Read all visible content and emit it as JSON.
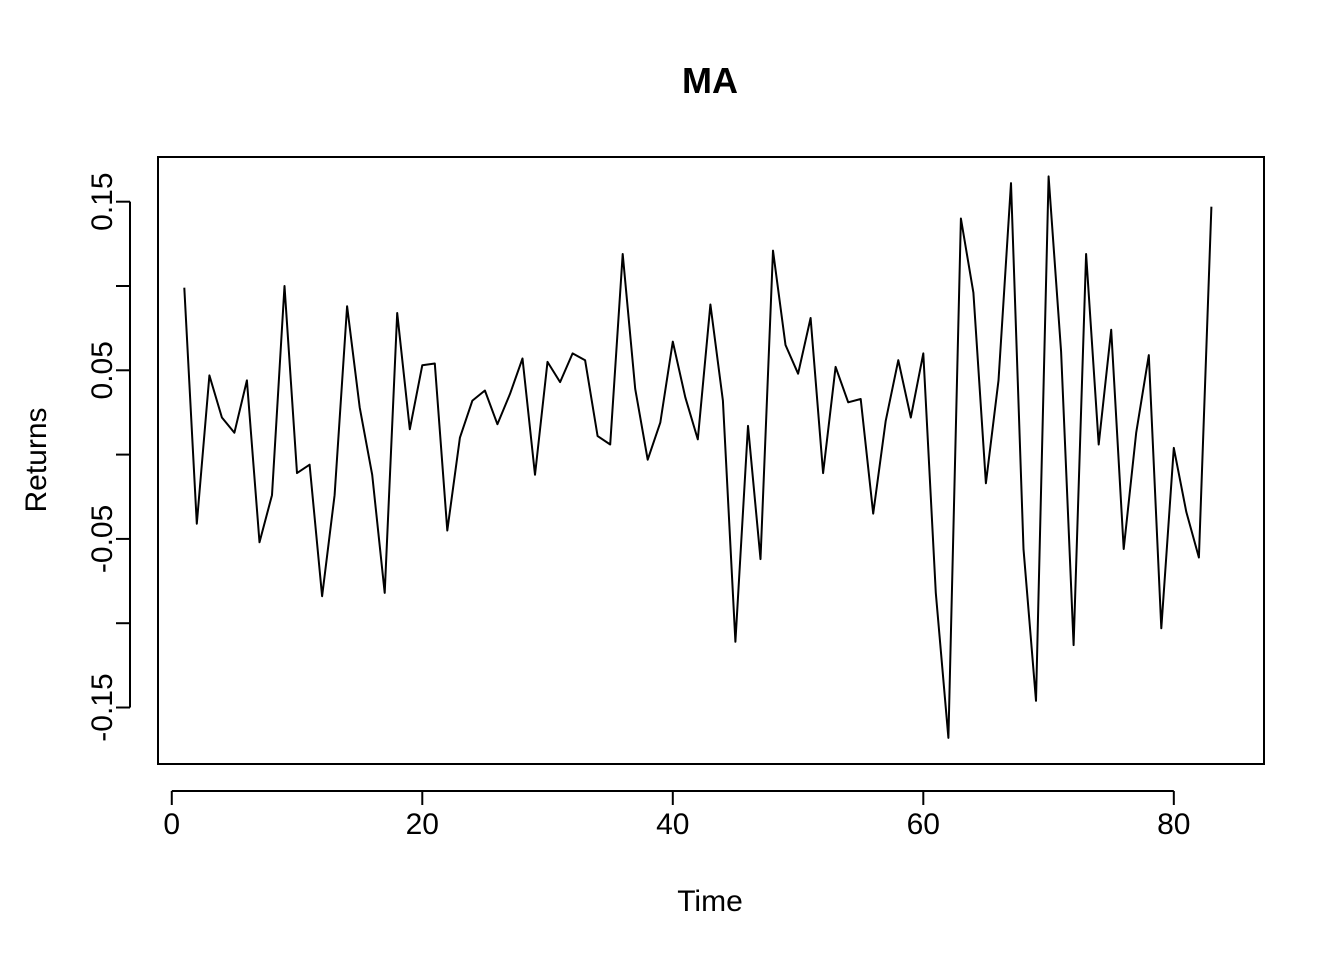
{
  "chart_data": {
    "type": "line",
    "title": "MA",
    "xlabel": "Time",
    "ylabel": "Returns",
    "xlim": [
      -1.1,
      87.2
    ],
    "ylim": [
      -0.1835,
      0.1765
    ],
    "xticks": [
      0,
      20,
      40,
      60,
      80
    ],
    "xtick_labels": [
      "0",
      "20",
      "40",
      "60",
      "80"
    ],
    "yticks": [
      -0.15,
      -0.1,
      -0.05,
      0,
      0.05,
      0.1,
      0.15
    ],
    "ytick_labels": [
      "-0.15",
      "",
      "-0.05",
      "",
      "0.05",
      "",
      "0.15"
    ],
    "grid": false,
    "line_color": "#000000",
    "series": [
      {
        "x": [
          1,
          2,
          3,
          4,
          5,
          6,
          7,
          8,
          9,
          10,
          11,
          12,
          13,
          14,
          15,
          16,
          17,
          18,
          19,
          20,
          21,
          22,
          23,
          24,
          25,
          26,
          27,
          28,
          29,
          30,
          31,
          32,
          33,
          34,
          35,
          36,
          37,
          38,
          39,
          40,
          41,
          42,
          43,
          44,
          45,
          46,
          47,
          48,
          49,
          50,
          51,
          52,
          53,
          54,
          55,
          56,
          57,
          58,
          59,
          60,
          61,
          62,
          63,
          64,
          65,
          66,
          67,
          68,
          69,
          70,
          71,
          72,
          73,
          74,
          75,
          76,
          77,
          78,
          79,
          80,
          81,
          82,
          83
        ],
        "values": [
          0.099,
          -0.041,
          0.047,
          0.022,
          0.013,
          0.044,
          -0.052,
          -0.024,
          0.1,
          -0.011,
          -0.006,
          -0.084,
          -0.024,
          0.088,
          0.028,
          -0.012,
          -0.082,
          0.084,
          0.015,
          0.053,
          0.054,
          -0.045,
          0.01,
          0.032,
          0.038,
          0.018,
          0.036,
          0.057,
          -0.012,
          0.055,
          0.043,
          0.06,
          0.056,
          0.011,
          0.006,
          0.119,
          0.039,
          -0.003,
          0.019,
          0.067,
          0.034,
          0.009,
          0.089,
          0.032,
          -0.111,
          0.017,
          -0.062,
          0.121,
          0.065,
          0.048,
          0.081,
          -0.011,
          0.052,
          0.031,
          0.033,
          -0.035,
          0.02,
          0.056,
          0.022,
          0.06,
          -0.082,
          -0.168,
          0.14,
          0.096,
          -0.017,
          0.044,
          0.161,
          -0.056,
          -0.146,
          0.165,
          0.061,
          -0.113,
          0.119,
          0.006,
          0.074,
          -0.056,
          0.013,
          0.059,
          -0.103,
          0.004,
          -0.034,
          -0.061,
          0.147
        ]
      }
    ]
  }
}
